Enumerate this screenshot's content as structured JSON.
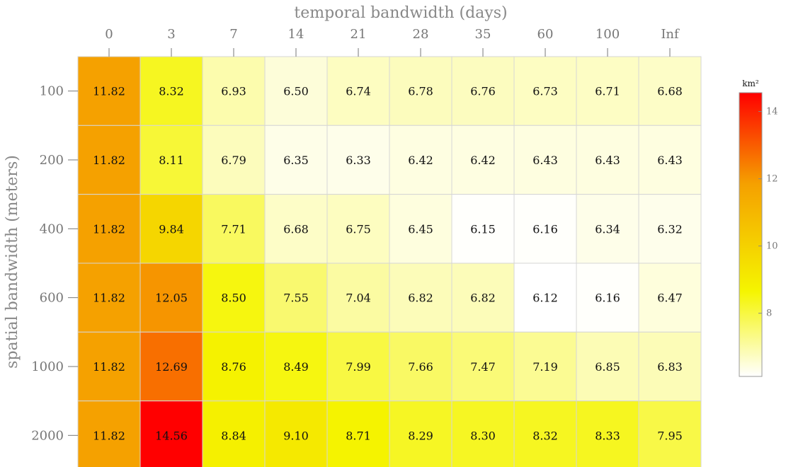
{
  "chart_data": {
    "type": "heatmap",
    "xlabel": "temporal bandwidth (days)",
    "ylabel": "spatial bandwidth (meters)",
    "x_categories": [
      "0",
      "3",
      "7",
      "14",
      "21",
      "28",
      "35",
      "60",
      "100",
      "Inf"
    ],
    "y_categories": [
      "100",
      "200",
      "400",
      "600",
      "1000",
      "2000"
    ],
    "values": [
      [
        11.82,
        8.32,
        6.93,
        6.5,
        6.74,
        6.78,
        6.76,
        6.73,
        6.71,
        6.68
      ],
      [
        11.82,
        8.11,
        6.79,
        6.35,
        6.33,
        6.42,
        6.42,
        6.43,
        6.43,
        6.43
      ],
      [
        11.82,
        9.84,
        7.71,
        6.68,
        6.75,
        6.45,
        6.15,
        6.16,
        6.34,
        6.32
      ],
      [
        11.82,
        12.05,
        8.5,
        7.55,
        7.04,
        6.82,
        6.82,
        6.12,
        6.16,
        6.47
      ],
      [
        11.82,
        12.69,
        8.76,
        8.49,
        7.99,
        7.66,
        7.47,
        7.19,
        6.85,
        6.83
      ],
      [
        11.82,
        14.56,
        8.84,
        9.1,
        8.71,
        8.29,
        8.3,
        8.32,
        8.33,
        7.95
      ]
    ],
    "value_labels": [
      [
        "11.82",
        "8.32",
        "6.93",
        "6.50",
        "6.74",
        "6.78",
        "6.76",
        "6.73",
        "6.71",
        "6.68"
      ],
      [
        "11.82",
        "8.11",
        "6.79",
        "6.35",
        "6.33",
        "6.42",
        "6.42",
        "6.43",
        "6.43",
        "6.43"
      ],
      [
        "11.82",
        "9.84",
        "7.71",
        "6.68",
        "6.75",
        "6.45",
        "6.15",
        "6.16",
        "6.34",
        "6.32"
      ],
      [
        "11.82",
        "12.05",
        "8.50",
        "7.55",
        "7.04",
        "6.82",
        "6.82",
        "6.12",
        "6.16",
        "6.47"
      ],
      [
        "11.82",
        "12.69",
        "8.76",
        "8.49",
        "7.99",
        "7.66",
        "7.47",
        "7.19",
        "6.85",
        "6.83"
      ],
      [
        "11.82",
        "14.56",
        "8.84",
        "9.10",
        "8.71",
        "8.29",
        "8.30",
        "8.32",
        "8.33",
        "7.95"
      ]
    ],
    "colorbar": {
      "title": "km²",
      "ticks": [
        8,
        10,
        12,
        14
      ],
      "tick_labels": [
        "8",
        "10",
        "12",
        "14"
      ],
      "range": [
        6.12,
        14.56
      ],
      "colormap": [
        "#ffffff",
        "#f5f500",
        "#f5a000",
        "#ff0000"
      ],
      "position": "right"
    },
    "grid": true
  }
}
